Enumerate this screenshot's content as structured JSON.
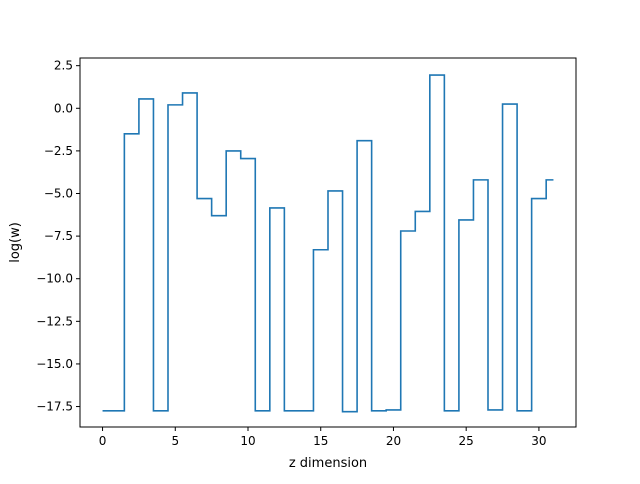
{
  "chart_data": {
    "type": "line",
    "drawstyle": "steps-mid",
    "title": "",
    "xlabel": "z dimension",
    "ylabel": "log(w)",
    "xlim": [
      -1.55,
      32.55
    ],
    "ylim": [
      -18.7,
      2.95
    ],
    "xticks": [
      0,
      5,
      10,
      15,
      20,
      25,
      30
    ],
    "xtick_labels": [
      "0",
      "5",
      "10",
      "15",
      "20",
      "25",
      "30"
    ],
    "yticks": [
      2.5,
      0.0,
      -2.5,
      -5.0,
      -7.5,
      -10.0,
      -12.5,
      -15.0,
      -17.5
    ],
    "ytick_labels": [
      "2.5",
      "0.0",
      "−2.5",
      "−5.0",
      "−7.5",
      "−10.0",
      "−12.5",
      "−15.0",
      "−17.5"
    ],
    "grid": false,
    "legend": "none",
    "series": [
      {
        "color": "#1f77b4",
        "x": [
          0,
          1,
          2,
          3,
          4,
          5,
          6,
          7,
          8,
          9,
          10,
          11,
          12,
          13,
          14,
          15,
          16,
          17,
          18,
          19,
          20,
          21,
          22,
          23,
          24,
          25,
          26,
          27,
          28,
          29,
          30,
          31
        ],
        "values": [
          -17.75,
          -17.75,
          -1.5,
          0.55,
          -17.75,
          0.2,
          0.9,
          -5.3,
          -6.3,
          -2.5,
          -2.95,
          -17.75,
          -5.85,
          -17.75,
          -17.75,
          -8.3,
          -4.85,
          -17.8,
          -1.9,
          -17.75,
          -17.7,
          -7.2,
          -6.05,
          1.95,
          -17.75,
          -6.55,
          -4.2,
          -17.7,
          0.25,
          -17.75,
          -5.3,
          -4.2
        ]
      }
    ]
  }
}
